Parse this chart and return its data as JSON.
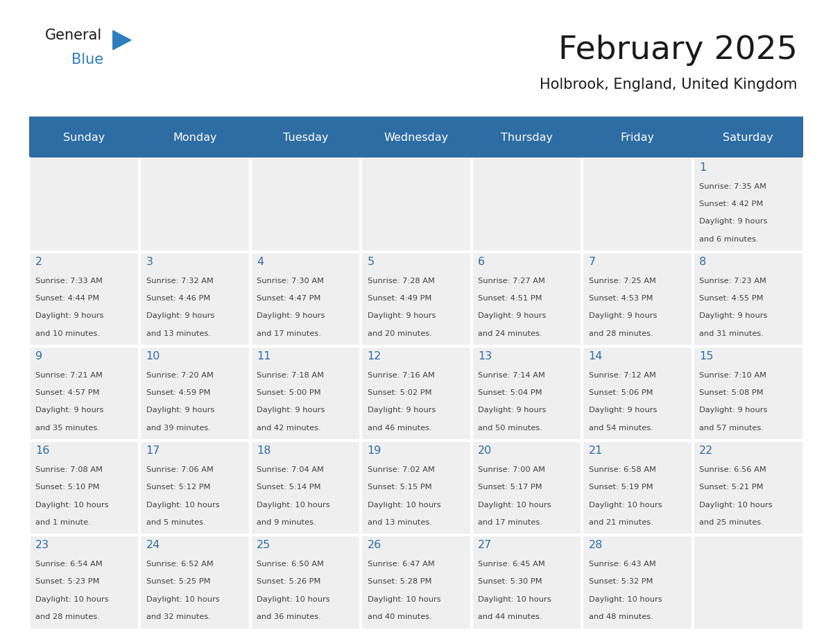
{
  "title": "February 2025",
  "subtitle": "Holbrook, England, United Kingdom",
  "days_of_week": [
    "Sunday",
    "Monday",
    "Tuesday",
    "Wednesday",
    "Thursday",
    "Friday",
    "Saturday"
  ],
  "header_bg": "#2E6DA4",
  "header_text": "#FFFFFF",
  "cell_bg": "#EFEFEF",
  "cell_bg_empty": "#EFEFEF",
  "day_number_color": "#2E6DA4",
  "info_text_color": "#404040",
  "title_color": "#1a1a1a",
  "subtitle_color": "#1a1a1a",
  "logo_general_color": "#1a1a1a",
  "logo_blue_color": "#2E7DBF",
  "weeks": [
    [
      null,
      null,
      null,
      null,
      null,
      null,
      1
    ],
    [
      2,
      3,
      4,
      5,
      6,
      7,
      8
    ],
    [
      9,
      10,
      11,
      12,
      13,
      14,
      15
    ],
    [
      16,
      17,
      18,
      19,
      20,
      21,
      22
    ],
    [
      23,
      24,
      25,
      26,
      27,
      28,
      null
    ]
  ],
  "day_data": {
    "1": {
      "sunrise": "7:35 AM",
      "sunset": "4:42 PM",
      "daylight": "9 hours",
      "daylight2": "and 6 minutes."
    },
    "2": {
      "sunrise": "7:33 AM",
      "sunset": "4:44 PM",
      "daylight": "9 hours",
      "daylight2": "and 10 minutes."
    },
    "3": {
      "sunrise": "7:32 AM",
      "sunset": "4:46 PM",
      "daylight": "9 hours",
      "daylight2": "and 13 minutes."
    },
    "4": {
      "sunrise": "7:30 AM",
      "sunset": "4:47 PM",
      "daylight": "9 hours",
      "daylight2": "and 17 minutes."
    },
    "5": {
      "sunrise": "7:28 AM",
      "sunset": "4:49 PM",
      "daylight": "9 hours",
      "daylight2": "and 20 minutes."
    },
    "6": {
      "sunrise": "7:27 AM",
      "sunset": "4:51 PM",
      "daylight": "9 hours",
      "daylight2": "and 24 minutes."
    },
    "7": {
      "sunrise": "7:25 AM",
      "sunset": "4:53 PM",
      "daylight": "9 hours",
      "daylight2": "and 28 minutes."
    },
    "8": {
      "sunrise": "7:23 AM",
      "sunset": "4:55 PM",
      "daylight": "9 hours",
      "daylight2": "and 31 minutes."
    },
    "9": {
      "sunrise": "7:21 AM",
      "sunset": "4:57 PM",
      "daylight": "9 hours",
      "daylight2": "and 35 minutes."
    },
    "10": {
      "sunrise": "7:20 AM",
      "sunset": "4:59 PM",
      "daylight": "9 hours",
      "daylight2": "and 39 minutes."
    },
    "11": {
      "sunrise": "7:18 AM",
      "sunset": "5:00 PM",
      "daylight": "9 hours",
      "daylight2": "and 42 minutes."
    },
    "12": {
      "sunrise": "7:16 AM",
      "sunset": "5:02 PM",
      "daylight": "9 hours",
      "daylight2": "and 46 minutes."
    },
    "13": {
      "sunrise": "7:14 AM",
      "sunset": "5:04 PM",
      "daylight": "9 hours",
      "daylight2": "and 50 minutes."
    },
    "14": {
      "sunrise": "7:12 AM",
      "sunset": "5:06 PM",
      "daylight": "9 hours",
      "daylight2": "and 54 minutes."
    },
    "15": {
      "sunrise": "7:10 AM",
      "sunset": "5:08 PM",
      "daylight": "9 hours",
      "daylight2": "and 57 minutes."
    },
    "16": {
      "sunrise": "7:08 AM",
      "sunset": "5:10 PM",
      "daylight": "10 hours",
      "daylight2": "and 1 minute."
    },
    "17": {
      "sunrise": "7:06 AM",
      "sunset": "5:12 PM",
      "daylight": "10 hours",
      "daylight2": "and 5 minutes."
    },
    "18": {
      "sunrise": "7:04 AM",
      "sunset": "5:14 PM",
      "daylight": "10 hours",
      "daylight2": "and 9 minutes."
    },
    "19": {
      "sunrise": "7:02 AM",
      "sunset": "5:15 PM",
      "daylight": "10 hours",
      "daylight2": "and 13 minutes."
    },
    "20": {
      "sunrise": "7:00 AM",
      "sunset": "5:17 PM",
      "daylight": "10 hours",
      "daylight2": "and 17 minutes."
    },
    "21": {
      "sunrise": "6:58 AM",
      "sunset": "5:19 PM",
      "daylight": "10 hours",
      "daylight2": "and 21 minutes."
    },
    "22": {
      "sunrise": "6:56 AM",
      "sunset": "5:21 PM",
      "daylight": "10 hours",
      "daylight2": "and 25 minutes."
    },
    "23": {
      "sunrise": "6:54 AM",
      "sunset": "5:23 PM",
      "daylight": "10 hours",
      "daylight2": "and 28 minutes."
    },
    "24": {
      "sunrise": "6:52 AM",
      "sunset": "5:25 PM",
      "daylight": "10 hours",
      "daylight2": "and 32 minutes."
    },
    "25": {
      "sunrise": "6:50 AM",
      "sunset": "5:26 PM",
      "daylight": "10 hours",
      "daylight2": "and 36 minutes."
    },
    "26": {
      "sunrise": "6:47 AM",
      "sunset": "5:28 PM",
      "daylight": "10 hours",
      "daylight2": "and 40 minutes."
    },
    "27": {
      "sunrise": "6:45 AM",
      "sunset": "5:30 PM",
      "daylight": "10 hours",
      "daylight2": "and 44 minutes."
    },
    "28": {
      "sunrise": "6:43 AM",
      "sunset": "5:32 PM",
      "daylight": "10 hours",
      "daylight2": "and 48 minutes."
    }
  },
  "fig_width": 11.88,
  "fig_height": 9.18,
  "dpi": 100
}
